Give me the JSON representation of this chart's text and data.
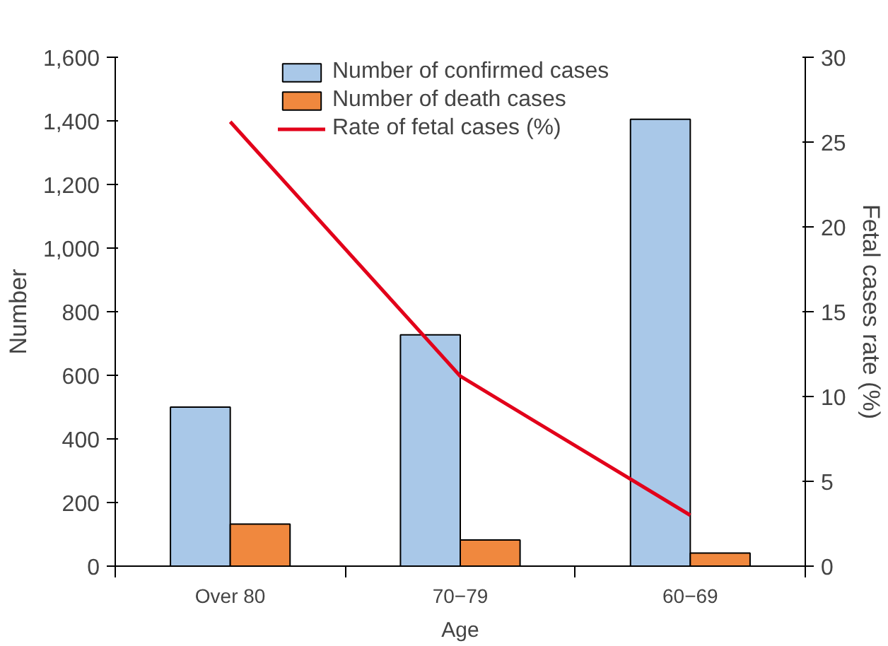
{
  "chart_data": {
    "type": "bar",
    "xlabel": "Age",
    "ylabel": "Number",
    "y2label": "Fetal cases rate (%)",
    "categories": [
      "Over 80",
      "70−79",
      "60−69"
    ],
    "series": [
      {
        "name": "Number of confirmed cases",
        "color": "#a9c8e8",
        "values": [
          500,
          727,
          1405
        ]
      },
      {
        "name": "Number of death cases",
        "color": "#f0883e",
        "values": [
          132,
          82,
          41
        ]
      },
      {
        "name": "Rate of fetal cases (%)",
        "color": "#e2001a",
        "type": "line",
        "axis": "y2",
        "values": [
          26.2,
          11.2,
          3.0
        ]
      }
    ],
    "ylim": [
      0,
      1600
    ],
    "yticks": [
      0,
      {
        "value": 200,
        "label": "200"
      },
      {
        "value": 400,
        "label": "400"
      },
      {
        "value": 600,
        "label": "600"
      },
      {
        "value": 800,
        "label": "800"
      },
      {
        "value": 1000,
        "label": "1,000"
      },
      {
        "value": 1200,
        "label": "1,200"
      },
      {
        "value": 1400,
        "label": "1,400"
      },
      {
        "value": 1600,
        "label": "1,600"
      }
    ],
    "y2lim": [
      0,
      30
    ],
    "y2ticks": [
      0,
      5,
      10,
      15,
      20,
      25,
      30
    ],
    "legend": "top"
  }
}
